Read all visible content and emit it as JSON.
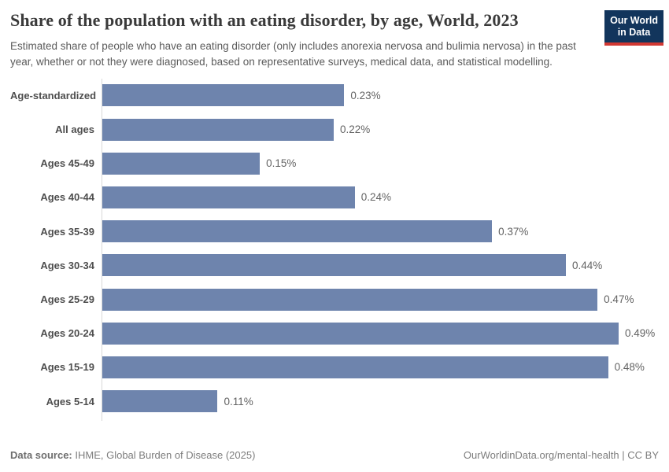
{
  "header": {
    "title": "Share of the population with an eating disorder, by age, World, 2023",
    "subtitle": "Estimated share of people who have an eating disorder (only includes anorexia nervosa and bulimia nervosa) in the past year, whether or not they were diagnosed, based on representative surveys, medical data, and statistical modelling.",
    "logo": {
      "line1": "Our World",
      "line2": "in Data",
      "bg_color": "#12355c",
      "accent_color": "#d13832"
    }
  },
  "chart_data": {
    "type": "bar",
    "orientation": "horizontal",
    "title": "Share of the population with an eating disorder, by age, World, 2023",
    "xlabel": "",
    "ylabel": "",
    "grid": false,
    "legend": false,
    "xlim": [
      0,
      0.49
    ],
    "unit": "%",
    "bar_color": "#6e84ad",
    "categories": [
      "Age-standardized",
      "All ages",
      "Ages 45-49",
      "Ages 40-44",
      "Ages 35-39",
      "Ages 30-34",
      "Ages 25-29",
      "Ages 20-24",
      "Ages 15-19",
      "Ages 5-14"
    ],
    "values": [
      0.23,
      0.22,
      0.15,
      0.24,
      0.37,
      0.44,
      0.47,
      0.49,
      0.48,
      0.11
    ],
    "value_labels": [
      "0.23%",
      "0.22%",
      "0.15%",
      "0.24%",
      "0.37%",
      "0.44%",
      "0.47%",
      "0.49%",
      "0.48%",
      "0.11%"
    ]
  },
  "footer": {
    "source_label": "Data source:",
    "source_text": "IHME, Global Burden of Disease (2025)",
    "credit": "OurWorldinData.org/mental-health | CC BY"
  }
}
